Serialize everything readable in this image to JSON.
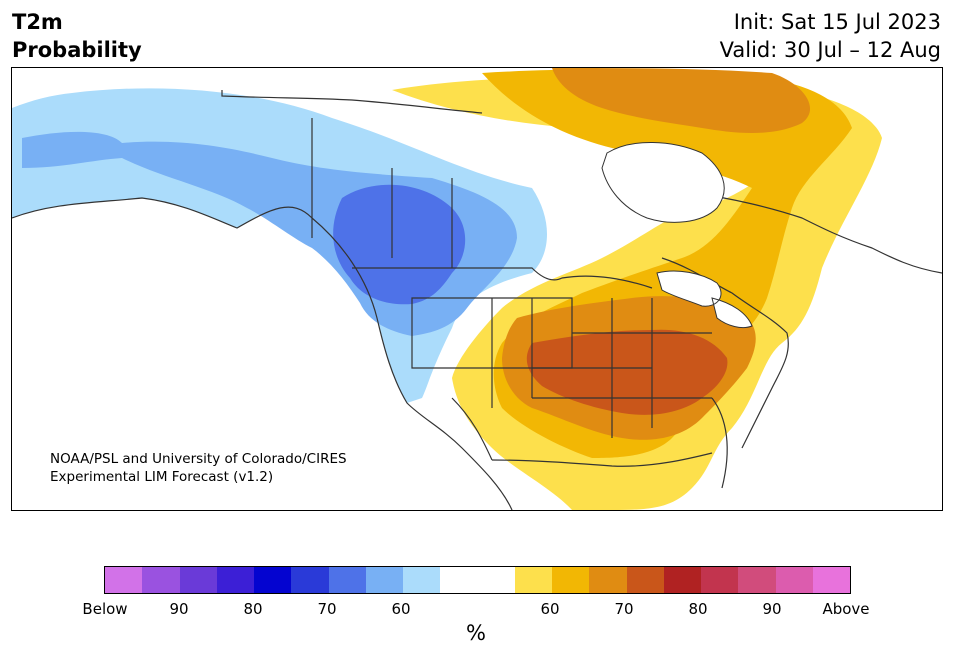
{
  "header": {
    "title_line1": "T2m",
    "title_line2": "Probability",
    "init": "Init: Sat 15 Jul 2023",
    "valid": "Valid: 30 Jul – 12 Aug"
  },
  "credit": {
    "line1": "NOAA/PSL and University of Colorado/CIRES",
    "line2": "Experimental LIM Forecast (v1.2)"
  },
  "colorbar": {
    "colors": [
      "#d272e8",
      "#9a52e0",
      "#6a3ad8",
      "#3c1fd6",
      "#0404d0",
      "#2a3ad8",
      "#4e72e8",
      "#78b0f4",
      "#abdcfb",
      "#ffffff",
      "#ffffff",
      "#fde04c",
      "#f2b704",
      "#e08c12",
      "#c9561a",
      "#b02222",
      "#c2344e",
      "#d14c7c",
      "#dc5cae",
      "#e872dc"
    ],
    "tick_labels": [
      "Below",
      "90",
      "80",
      "70",
      "60",
      "60",
      "70",
      "80",
      "90",
      "Above"
    ],
    "unit": "%"
  },
  "map_colors": {
    "blue_light": "#abdcfb",
    "blue_mid": "#78b0f4",
    "blue_dark": "#4e72e8",
    "yellow": "#fde04c",
    "gold": "#f2b704",
    "orange": "#e08c12",
    "rust": "#c9561a",
    "outline": "#333333"
  }
}
